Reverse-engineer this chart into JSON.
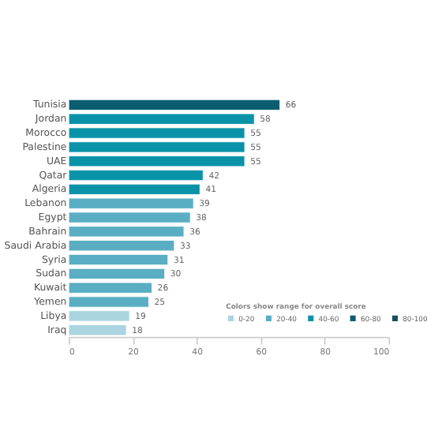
{
  "chart_data": {
    "type": "bar",
    "orientation": "horizontal",
    "categories": [
      "Tunisia",
      "Jordan",
      "Morocco",
      "Palestine",
      "UAE",
      "Qatar",
      "Algeria",
      "Lebanon",
      "Egypt",
      "Bahrain",
      "Saudi Arabia",
      "Syria",
      "Sudan",
      "Kuwait",
      "Yemen",
      "Libya",
      "Iraq"
    ],
    "series": [
      {
        "name": "0-20",
        "color": "#aad4e0",
        "values": [
          null,
          null,
          null,
          null,
          null,
          null,
          null,
          null,
          null,
          null,
          null,
          null,
          null,
          null,
          null,
          19,
          18
        ]
      },
      {
        "name": "20-40",
        "color": "#5aaec3",
        "values": [
          null,
          null,
          null,
          null,
          null,
          null,
          null,
          39,
          38,
          36,
          33,
          31,
          30,
          26,
          25,
          null,
          null
        ]
      },
      {
        "name": "40-60",
        "color": "#0a93a8",
        "values": [
          null,
          58,
          55,
          55,
          55,
          42,
          41,
          null,
          null,
          null,
          null,
          null,
          null,
          null,
          null,
          null,
          null
        ]
      },
      {
        "name": "60-80",
        "color": "#0b5d70",
        "values": [
          66,
          null,
          null,
          null,
          null,
          null,
          null,
          null,
          null,
          null,
          null,
          null,
          null,
          null,
          null,
          null,
          null
        ]
      },
      {
        "name": "80-100",
        "color": "#1b4e5e",
        "values": [
          null,
          null,
          null,
          null,
          null,
          null,
          null,
          null,
          null,
          null,
          null,
          null,
          null,
          null,
          null,
          null,
          null
        ]
      }
    ],
    "legend_title": "Colors show range for overall score",
    "legend": "bottom right",
    "xlim": [
      0,
      100
    ],
    "xticks": [
      0,
      20,
      40,
      60,
      80,
      100
    ],
    "grid": false,
    "data_labels": true
  }
}
